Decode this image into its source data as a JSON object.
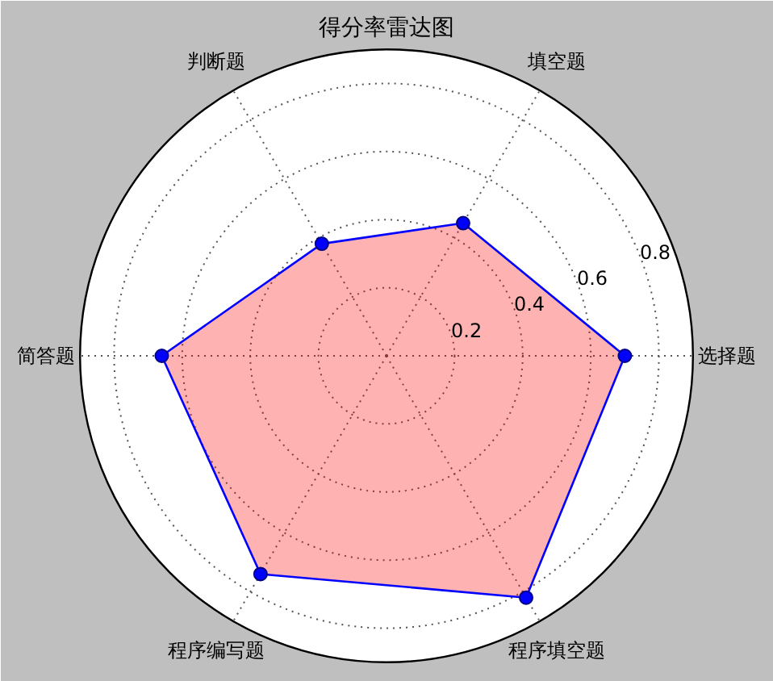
{
  "chart_data": {
    "type": "radar",
    "title": "得分率雷达图",
    "categories": [
      "填空题",
      "选择题",
      "程序填空题",
      "程序编写题",
      "简答题",
      "判断题"
    ],
    "series": [
      {
        "color": "#0000ff",
        "values": [
          0.45,
          0.7,
          0.82,
          0.74,
          0.66,
          0.38
        ]
      }
    ],
    "ylim": [
      0,
      0.9
    ],
    "yticks": [
      0.2,
      0.4,
      0.6,
      0.8
    ],
    "grid": true,
    "marker": "circle",
    "line_style": "solid"
  }
}
